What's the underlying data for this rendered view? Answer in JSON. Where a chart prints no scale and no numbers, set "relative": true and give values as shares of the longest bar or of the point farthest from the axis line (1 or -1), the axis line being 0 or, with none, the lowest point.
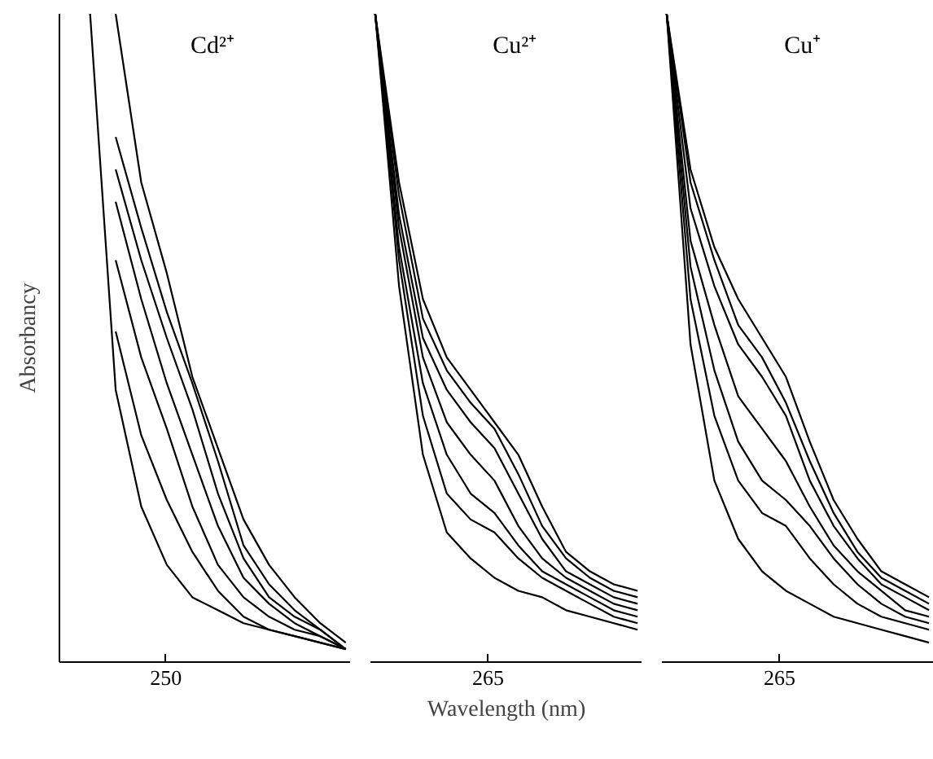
{
  "chart_data": [
    {
      "type": "line",
      "title": "Cd²⁺",
      "ylabel": "Absorbancy",
      "relative": true,
      "grid": false,
      "annotations": [
        "250"
      ],
      "categories": [
        null,
        null,
        null,
        null,
        null,
        null,
        null,
        null,
        null,
        null,
        null,
        null
      ],
      "series": [
        {
          "color": "#000000",
          "values": [
            null,
            1.0,
            0.42,
            0.24,
            0.15,
            0.1,
            0.08,
            0.06,
            0.05,
            0.04,
            0.03,
            0.02
          ]
        },
        {
          "color": "#000000",
          "values": [
            null,
            null,
            0.51,
            0.35,
            0.25,
            0.17,
            0.11,
            0.07,
            0.05,
            0.04,
            0.03,
            0.02
          ]
        },
        {
          "color": "#000000",
          "values": [
            null,
            null,
            0.62,
            0.47,
            0.36,
            0.24,
            0.15,
            0.1,
            0.07,
            0.05,
            0.04,
            0.02
          ]
        },
        {
          "color": "#000000",
          "values": [
            null,
            null,
            0.71,
            0.56,
            0.43,
            0.32,
            0.21,
            0.13,
            0.09,
            0.06,
            0.04,
            0.02
          ]
        },
        {
          "color": "#000000",
          "values": [
            null,
            null,
            0.76,
            0.62,
            0.5,
            0.39,
            0.26,
            0.16,
            0.1,
            0.07,
            0.05,
            0.02
          ]
        },
        {
          "color": "#000000",
          "values": [
            null,
            null,
            0.81,
            0.67,
            0.54,
            0.43,
            0.31,
            0.18,
            0.12,
            0.08,
            0.05,
            0.02
          ]
        },
        {
          "color": "#000000",
          "values": [
            null,
            null,
            1.0,
            0.74,
            0.6,
            0.44,
            0.33,
            0.22,
            0.15,
            0.1,
            0.06,
            0.03
          ]
        }
      ]
    },
    {
      "type": "line",
      "title": "Cu²⁺",
      "xlabel": "Wavelength (nm)",
      "relative": true,
      "grid": false,
      "annotations": [
        "265"
      ],
      "categories": [
        null,
        null,
        null,
        null,
        null,
        null,
        null,
        null,
        null,
        null,
        null,
        null
      ],
      "series": [
        {
          "color": "#000000",
          "values": [
            1.0,
            0.58,
            0.32,
            0.2,
            0.16,
            0.13,
            0.11,
            0.1,
            0.08,
            0.07,
            0.06,
            0.05
          ]
        },
        {
          "color": "#000000",
          "values": [
            1.0,
            0.62,
            0.38,
            0.26,
            0.22,
            0.2,
            0.16,
            0.13,
            0.11,
            0.09,
            0.07,
            0.06
          ]
        },
        {
          "color": "#000000",
          "values": [
            1.0,
            0.64,
            0.43,
            0.32,
            0.26,
            0.23,
            0.18,
            0.14,
            0.12,
            0.1,
            0.08,
            0.07
          ]
        },
        {
          "color": "#000000",
          "values": [
            1.0,
            0.67,
            0.47,
            0.37,
            0.32,
            0.28,
            0.21,
            0.16,
            0.13,
            0.11,
            0.09,
            0.08
          ]
        },
        {
          "color": "#000000",
          "values": [
            1.0,
            0.69,
            0.5,
            0.42,
            0.37,
            0.33,
            0.26,
            0.19,
            0.14,
            0.12,
            0.1,
            0.09
          ]
        },
        {
          "color": "#000000",
          "values": [
            1.0,
            0.72,
            0.53,
            0.45,
            0.4,
            0.36,
            0.29,
            0.21,
            0.16,
            0.13,
            0.11,
            0.1
          ]
        },
        {
          "color": "#000000",
          "values": [
            1.0,
            0.74,
            0.56,
            0.47,
            0.42,
            0.37,
            0.32,
            0.24,
            0.17,
            0.14,
            0.12,
            0.11
          ]
        }
      ]
    },
    {
      "type": "line",
      "title": "Cu⁺",
      "relative": true,
      "grid": false,
      "annotations": [
        "265"
      ],
      "categories": [
        null,
        null,
        null,
        null,
        null,
        null,
        null,
        null,
        null,
        null,
        null,
        null
      ],
      "series": [
        {
          "color": "#000000",
          "values": [
            1.0,
            0.49,
            0.28,
            0.19,
            0.14,
            0.11,
            0.09,
            0.07,
            0.06,
            0.05,
            0.04,
            0.03
          ]
        },
        {
          "color": "#000000",
          "values": [
            1.0,
            0.56,
            0.38,
            0.28,
            0.23,
            0.21,
            0.16,
            0.12,
            0.09,
            0.07,
            0.06,
            0.05
          ]
        },
        {
          "color": "#000000",
          "values": [
            1.0,
            0.61,
            0.45,
            0.34,
            0.28,
            0.25,
            0.21,
            0.16,
            0.12,
            0.09,
            0.07,
            0.06
          ]
        },
        {
          "color": "#000000",
          "values": [
            1.0,
            0.65,
            0.52,
            0.41,
            0.36,
            0.31,
            0.24,
            0.18,
            0.14,
            0.11,
            0.08,
            0.07
          ]
        },
        {
          "color": "#000000",
          "values": [
            1.0,
            0.7,
            0.58,
            0.49,
            0.44,
            0.38,
            0.28,
            0.21,
            0.16,
            0.12,
            0.1,
            0.08
          ]
        },
        {
          "color": "#000000",
          "values": [
            1.0,
            0.74,
            0.62,
            0.52,
            0.47,
            0.4,
            0.31,
            0.23,
            0.17,
            0.13,
            0.11,
            0.09
          ]
        },
        {
          "color": "#000000",
          "values": [
            1.0,
            0.76,
            0.64,
            0.56,
            0.5,
            0.44,
            0.34,
            0.25,
            0.19,
            0.14,
            0.12,
            0.1
          ]
        }
      ]
    }
  ]
}
